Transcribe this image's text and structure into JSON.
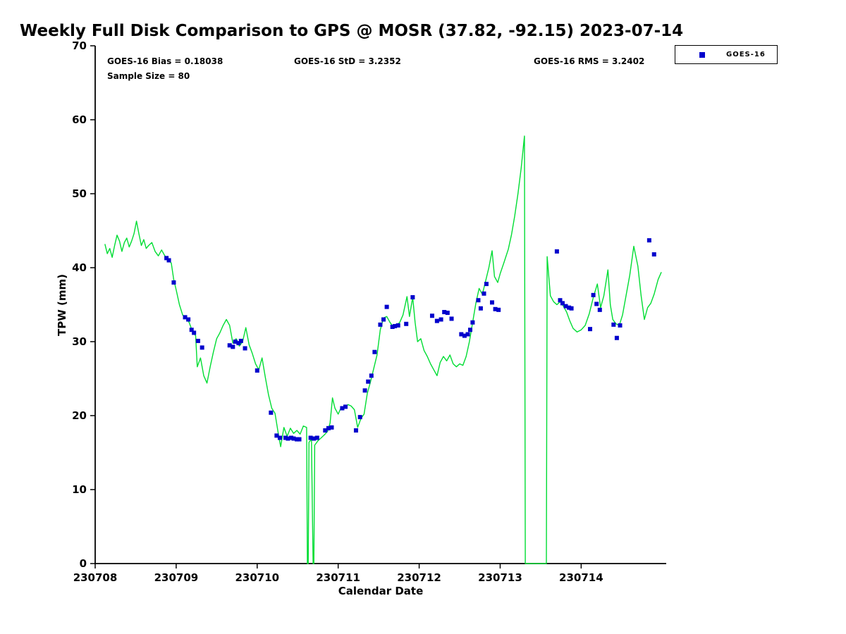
{
  "title": "Weekly Full Disk Comparison to GPS @ MOSR (37.82, -92.15) 2023-07-14",
  "annotations": {
    "bias": "GOES-16 Bias = 0.18038",
    "std": "GOES-16 StD = 3.2352",
    "rms": "GOES-16 RMS = 3.2402",
    "sample": "Sample Size = 80"
  },
  "colors": {
    "gps_line": "#00dd33",
    "goes_marker": "#0000cc",
    "axis": "#000000",
    "background": "#ffffff"
  },
  "chart_data": {
    "type": "line",
    "title": "Weekly Full Disk Comparison to GPS @ MOSR (37.82, -92.15) 2023-07-14",
    "xlabel": "Calendar Date",
    "ylabel": "TPW (mm)",
    "xlim": [
      230708,
      230715.05
    ],
    "ylim": [
      0,
      70
    ],
    "xticks": [
      230708,
      230709,
      230710,
      230711,
      230712,
      230713,
      230714
    ],
    "yticks": [
      0,
      10,
      20,
      30,
      40,
      50,
      60,
      70
    ],
    "grid": false,
    "stats": {
      "bias": 0.18038,
      "std": 3.2352,
      "rms": 3.2402,
      "sample_size": 80
    },
    "legend": {
      "position": "top-right-outside",
      "entries": [
        {
          "label": "GOES-16",
          "color": "#0000cc",
          "marker": "square"
        }
      ]
    },
    "series": [
      {
        "name": "GPS",
        "type": "line",
        "color": "#00dd33",
        "points": [
          [
            230708.12,
            43.2
          ],
          [
            230708.15,
            41.9
          ],
          [
            230708.18,
            42.6
          ],
          [
            230708.21,
            41.4
          ],
          [
            230708.24,
            43.0
          ],
          [
            230708.27,
            44.4
          ],
          [
            230708.3,
            43.6
          ],
          [
            230708.33,
            42.2
          ],
          [
            230708.36,
            43.4
          ],
          [
            230708.39,
            44.0
          ],
          [
            230708.42,
            42.8
          ],
          [
            230708.45,
            43.6
          ],
          [
            230708.48,
            44.6
          ],
          [
            230708.51,
            46.3
          ],
          [
            230708.54,
            44.6
          ],
          [
            230708.57,
            43.0
          ],
          [
            230708.6,
            43.8
          ],
          [
            230708.63,
            42.6
          ],
          [
            230708.66,
            43.0
          ],
          [
            230708.7,
            43.4
          ],
          [
            230708.74,
            42.2
          ],
          [
            230708.78,
            41.6
          ],
          [
            230708.82,
            42.4
          ],
          [
            230708.86,
            41.6
          ],
          [
            230708.9,
            41.2
          ],
          [
            230708.94,
            40.6
          ],
          [
            230708.97,
            38.4
          ],
          [
            230709.0,
            37.0
          ],
          [
            230709.04,
            35.0
          ],
          [
            230709.08,
            33.6
          ],
          [
            230709.12,
            33.2
          ],
          [
            230709.16,
            32.6
          ],
          [
            230709.2,
            31.4
          ],
          [
            230709.24,
            30.8
          ],
          [
            230709.26,
            26.6
          ],
          [
            230709.3,
            27.8
          ],
          [
            230709.34,
            25.4
          ],
          [
            230709.38,
            24.4
          ],
          [
            230709.42,
            26.6
          ],
          [
            230709.46,
            28.6
          ],
          [
            230709.5,
            30.4
          ],
          [
            230709.54,
            31.2
          ],
          [
            230709.58,
            32.2
          ],
          [
            230709.62,
            33.0
          ],
          [
            230709.66,
            32.2
          ],
          [
            230709.7,
            29.8
          ],
          [
            230709.74,
            30.4
          ],
          [
            230709.78,
            29.4
          ],
          [
            230709.82,
            30.0
          ],
          [
            230709.86,
            31.9
          ],
          [
            230709.9,
            29.6
          ],
          [
            230709.94,
            28.4
          ],
          [
            230709.98,
            27.0
          ],
          [
            230710.02,
            26.2
          ],
          [
            230710.06,
            27.8
          ],
          [
            230710.1,
            25.2
          ],
          [
            230710.14,
            22.8
          ],
          [
            230710.18,
            21.0
          ],
          [
            230710.22,
            20.3
          ],
          [
            230710.26,
            17.6
          ],
          [
            230710.29,
            15.8
          ],
          [
            230710.33,
            18.4
          ],
          [
            230710.37,
            17.2
          ],
          [
            230710.41,
            18.3
          ],
          [
            230710.45,
            17.6
          ],
          [
            230710.49,
            18.0
          ],
          [
            230710.53,
            17.5
          ],
          [
            230710.57,
            18.6
          ],
          [
            230710.61,
            18.4
          ],
          [
            230710.62,
            0
          ],
          [
            230710.63,
            0
          ],
          [
            230710.64,
            16.4
          ],
          [
            230710.67,
            16.8
          ],
          [
            230710.69,
            0
          ],
          [
            230710.7,
            0
          ],
          [
            230710.71,
            16.0
          ],
          [
            230710.75,
            16.6
          ],
          [
            230710.79,
            17.0
          ],
          [
            230710.83,
            17.4
          ],
          [
            230710.87,
            17.9
          ],
          [
            230710.9,
            19.0
          ],
          [
            230710.93,
            22.4
          ],
          [
            230710.96,
            21.0
          ],
          [
            230711.0,
            20.2
          ],
          [
            230711.04,
            21.2
          ],
          [
            230711.08,
            21.0
          ],
          [
            230711.12,
            21.5
          ],
          [
            230711.16,
            21.3
          ],
          [
            230711.2,
            20.8
          ],
          [
            230711.24,
            18.4
          ],
          [
            230711.28,
            19.6
          ],
          [
            230711.32,
            20.2
          ],
          [
            230711.36,
            23.0
          ],
          [
            230711.4,
            24.6
          ],
          [
            230711.44,
            26.4
          ],
          [
            230711.48,
            28.2
          ],
          [
            230711.52,
            31.6
          ],
          [
            230711.56,
            33.2
          ],
          [
            230711.6,
            33.4
          ],
          [
            230711.64,
            32.6
          ],
          [
            230711.68,
            32.0
          ],
          [
            230711.72,
            32.2
          ],
          [
            230711.76,
            32.6
          ],
          [
            230711.8,
            33.6
          ],
          [
            230711.85,
            36.1
          ],
          [
            230711.88,
            33.4
          ],
          [
            230711.92,
            36.0
          ],
          [
            230711.95,
            32.6
          ],
          [
            230711.98,
            30.0
          ],
          [
            230712.02,
            30.4
          ],
          [
            230712.06,
            28.8
          ],
          [
            230712.1,
            28.0
          ],
          [
            230712.14,
            27.0
          ],
          [
            230712.18,
            26.2
          ],
          [
            230712.22,
            25.4
          ],
          [
            230712.26,
            27.2
          ],
          [
            230712.3,
            28.0
          ],
          [
            230712.34,
            27.4
          ],
          [
            230712.38,
            28.2
          ],
          [
            230712.42,
            27.0
          ],
          [
            230712.46,
            26.6
          ],
          [
            230712.5,
            27.0
          ],
          [
            230712.54,
            26.8
          ],
          [
            230712.58,
            28.0
          ],
          [
            230712.62,
            30.0
          ],
          [
            230712.66,
            32.6
          ],
          [
            230712.7,
            35.2
          ],
          [
            230712.74,
            37.2
          ],
          [
            230712.78,
            36.4
          ],
          [
            230712.82,
            38.2
          ],
          [
            230712.86,
            40.0
          ],
          [
            230712.9,
            42.3
          ],
          [
            230712.93,
            38.8
          ],
          [
            230712.97,
            38.0
          ],
          [
            230713.0,
            39.2
          ],
          [
            230713.05,
            40.8
          ],
          [
            230713.1,
            42.5
          ],
          [
            230713.14,
            44.5
          ],
          [
            230713.18,
            47.0
          ],
          [
            230713.22,
            50.0
          ],
          [
            230713.26,
            53.5
          ],
          [
            230713.3,
            57.8
          ],
          [
            230713.31,
            0
          ],
          [
            230713.57,
            0
          ],
          [
            230713.58,
            41.5
          ],
          [
            230713.62,
            36.2
          ],
          [
            230713.66,
            35.4
          ],
          [
            230713.7,
            35.0
          ],
          [
            230713.74,
            35.4
          ],
          [
            230713.78,
            34.8
          ],
          [
            230713.82,
            34.0
          ],
          [
            230713.86,
            32.8
          ],
          [
            230713.9,
            31.8
          ],
          [
            230713.95,
            31.3
          ],
          [
            230714.0,
            31.6
          ],
          [
            230714.05,
            32.2
          ],
          [
            230714.1,
            33.8
          ],
          [
            230714.15,
            36.0
          ],
          [
            230714.2,
            37.8
          ],
          [
            230714.24,
            34.6
          ],
          [
            230714.28,
            36.2
          ],
          [
            230714.33,
            39.7
          ],
          [
            230714.36,
            35.0
          ],
          [
            230714.39,
            33.0
          ],
          [
            230714.43,
            32.4
          ],
          [
            230714.47,
            32.2
          ],
          [
            230714.51,
            33.6
          ],
          [
            230714.55,
            36.0
          ],
          [
            230714.6,
            39.0
          ],
          [
            230714.65,
            42.9
          ],
          [
            230714.7,
            40.2
          ],
          [
            230714.74,
            36.2
          ],
          [
            230714.78,
            33.0
          ],
          [
            230714.82,
            34.6
          ],
          [
            230714.86,
            35.2
          ],
          [
            230714.9,
            36.4
          ],
          [
            230714.95,
            38.4
          ],
          [
            230714.99,
            39.4
          ]
        ]
      },
      {
        "name": "GOES-16",
        "type": "scatter",
        "marker": "square",
        "color": "#0000cc",
        "points": [
          [
            230708.88,
            41.3
          ],
          [
            230708.91,
            41.0
          ],
          [
            230708.97,
            38.0
          ],
          [
            230709.11,
            33.3
          ],
          [
            230709.15,
            33.0
          ],
          [
            230709.19,
            31.6
          ],
          [
            230709.22,
            31.2
          ],
          [
            230709.27,
            30.1
          ],
          [
            230709.32,
            29.2
          ],
          [
            230709.66,
            29.5
          ],
          [
            230709.7,
            29.3
          ],
          [
            230709.73,
            30.0
          ],
          [
            230709.77,
            29.8
          ],
          [
            230709.8,
            30.1
          ],
          [
            230709.85,
            29.1
          ],
          [
            230710.0,
            26.1
          ],
          [
            230710.17,
            20.4
          ],
          [
            230710.24,
            17.3
          ],
          [
            230710.28,
            17.0
          ],
          [
            230710.35,
            17.0
          ],
          [
            230710.38,
            16.9
          ],
          [
            230710.42,
            17.0
          ],
          [
            230710.45,
            16.9
          ],
          [
            230710.49,
            16.8
          ],
          [
            230710.52,
            16.8
          ],
          [
            230710.66,
            17.0
          ],
          [
            230710.7,
            16.9
          ],
          [
            230710.74,
            17.0
          ],
          [
            230710.84,
            18.0
          ],
          [
            230710.88,
            18.3
          ],
          [
            230710.92,
            18.4
          ],
          [
            230711.05,
            21.0
          ],
          [
            230711.09,
            21.2
          ],
          [
            230711.22,
            18.0
          ],
          [
            230711.27,
            19.8
          ],
          [
            230711.33,
            23.4
          ],
          [
            230711.37,
            24.6
          ],
          [
            230711.41,
            25.4
          ],
          [
            230711.45,
            28.6
          ],
          [
            230711.52,
            32.3
          ],
          [
            230711.56,
            33.0
          ],
          [
            230711.6,
            34.7
          ],
          [
            230711.67,
            32.0
          ],
          [
            230711.7,
            32.1
          ],
          [
            230711.74,
            32.2
          ],
          [
            230711.84,
            32.4
          ],
          [
            230711.92,
            36.0
          ],
          [
            230712.16,
            33.5
          ],
          [
            230712.22,
            32.8
          ],
          [
            230712.27,
            33.0
          ],
          [
            230712.31,
            34.0
          ],
          [
            230712.35,
            33.9
          ],
          [
            230712.4,
            33.1
          ],
          [
            230712.52,
            31.0
          ],
          [
            230712.56,
            30.8
          ],
          [
            230712.6,
            31.0
          ],
          [
            230712.63,
            31.6
          ],
          [
            230712.66,
            32.6
          ],
          [
            230712.73,
            35.6
          ],
          [
            230712.76,
            34.5
          ],
          [
            230712.8,
            36.5
          ],
          [
            230712.83,
            37.8
          ],
          [
            230712.9,
            35.3
          ],
          [
            230712.94,
            34.4
          ],
          [
            230712.98,
            34.3
          ],
          [
            230713.7,
            42.2
          ],
          [
            230713.74,
            35.6
          ],
          [
            230713.77,
            35.2
          ],
          [
            230713.81,
            34.8
          ],
          [
            230713.85,
            34.6
          ],
          [
            230713.88,
            34.5
          ],
          [
            230714.11,
            31.7
          ],
          [
            230714.15,
            36.3
          ],
          [
            230714.19,
            35.1
          ],
          [
            230714.23,
            34.3
          ],
          [
            230714.4,
            32.3
          ],
          [
            230714.44,
            30.5
          ],
          [
            230714.48,
            32.2
          ],
          [
            230714.84,
            43.7
          ],
          [
            230714.9,
            41.8
          ]
        ]
      }
    ]
  }
}
